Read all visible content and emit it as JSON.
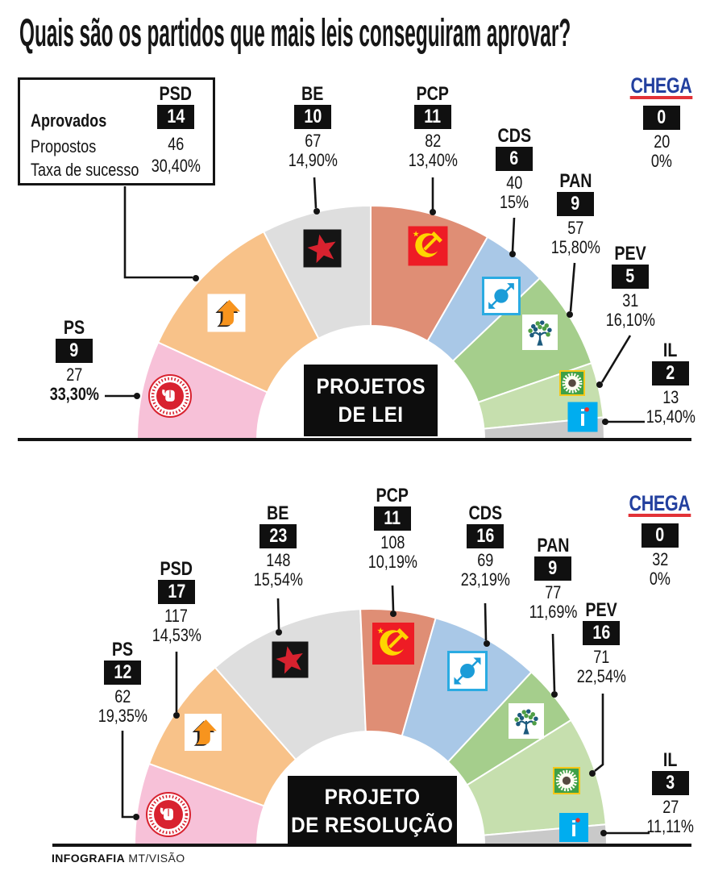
{
  "title": "Quais são os partidos que mais leis conseguiram aprovar?",
  "legend": {
    "rows": [
      "Aprovados",
      "Propostos",
      "Taxa de sucesso"
    ]
  },
  "footer": {
    "credit_bold": "INFOGRAFIA",
    "credit_regular": "MT/VISÃO"
  },
  "colors": {
    "ink": "#141414",
    "chega_blue": "#23409f",
    "chega_red": "#e23237",
    "ps_red": "#d8222f",
    "psd_orange": "#f7941e",
    "be_red": "#d8222f",
    "pcp_red": "#ee1c25",
    "pcp_yellow": "#ffd500",
    "cds_blue": "#1b9cd8",
    "pan_blue": "#1c5a7d",
    "pan_green": "#4f9e46",
    "pev_green": "#3fa047",
    "pev_yellow": "#f5c718",
    "il_cyan": "#00adef"
  },
  "chart_data": [
    {
      "type": "hemicycle",
      "title": "PROJETOS DE LEI",
      "title_lines": [
        "PROJETOS",
        "DE LEI"
      ],
      "note": "arc size proportional to approved count",
      "parties": [
        {
          "name": "PS",
          "approved": 9,
          "proposed": 27,
          "rate": "33,30%",
          "rate_bold": true,
          "color": "#f7c1d8"
        },
        {
          "name": "PSD",
          "approved": 14,
          "proposed": 46,
          "rate": "30,40%",
          "rate_bold": false,
          "color": "#f8c289"
        },
        {
          "name": "BE",
          "approved": 10,
          "proposed": 67,
          "rate": "14,90%",
          "rate_bold": false,
          "color": "#dedede"
        },
        {
          "name": "PCP",
          "approved": 11,
          "proposed": 82,
          "rate": "13,40%",
          "rate_bold": false,
          "color": "#df8e75"
        },
        {
          "name": "CDS",
          "approved": 6,
          "proposed": 40,
          "rate": "15%",
          "rate_bold": false,
          "color": "#a9c8e7"
        },
        {
          "name": "PAN",
          "approved": 9,
          "proposed": 57,
          "rate": "15,80%",
          "rate_bold": false,
          "color": "#a5ce8c"
        },
        {
          "name": "PEV",
          "approved": 5,
          "proposed": 31,
          "rate": "16,10%",
          "rate_bold": false,
          "color": "#c6dfae"
        },
        {
          "name": "IL",
          "approved": 2,
          "proposed": 13,
          "rate": "15,40%",
          "rate_bold": false,
          "color": "#c9c9c9"
        },
        {
          "name": "CHEGA",
          "approved": 0,
          "proposed": 20,
          "rate": "0%",
          "rate_bold": false,
          "color": null
        }
      ]
    },
    {
      "type": "hemicycle",
      "title": "PROJETO DE RESOLUÇÃO",
      "title_lines": [
        "PROJETO",
        "DE RESOLUÇÃO"
      ],
      "note": "arc size proportional to approved count",
      "parties": [
        {
          "name": "PS",
          "approved": 12,
          "proposed": 62,
          "rate": "19,35%",
          "rate_bold": false,
          "color": "#f7c1d8"
        },
        {
          "name": "PSD",
          "approved": 17,
          "proposed": 117,
          "rate": "14,53%",
          "rate_bold": false,
          "color": "#f8c289"
        },
        {
          "name": "BE",
          "approved": 23,
          "proposed": 148,
          "rate": "15,54%",
          "rate_bold": false,
          "color": "#dedede"
        },
        {
          "name": "PCP",
          "approved": 11,
          "proposed": 108,
          "rate": "10,19%",
          "rate_bold": false,
          "color": "#df8e75"
        },
        {
          "name": "CDS",
          "approved": 16,
          "proposed": 69,
          "rate": "23,19%",
          "rate_bold": false,
          "color": "#a9c8e7"
        },
        {
          "name": "PAN",
          "approved": 9,
          "proposed": 77,
          "rate": "11,69%",
          "rate_bold": false,
          "color": "#a5ce8c"
        },
        {
          "name": "PEV",
          "approved": 16,
          "proposed": 71,
          "rate": "22,54%",
          "rate_bold": false,
          "color": "#c6dfae"
        },
        {
          "name": "IL",
          "approved": 3,
          "proposed": 27,
          "rate": "11,11%",
          "rate_bold": false,
          "color": "#c9c9c9"
        },
        {
          "name": "CHEGA",
          "approved": 0,
          "proposed": 32,
          "rate": "0%",
          "rate_bold": false,
          "color": null
        }
      ]
    }
  ]
}
